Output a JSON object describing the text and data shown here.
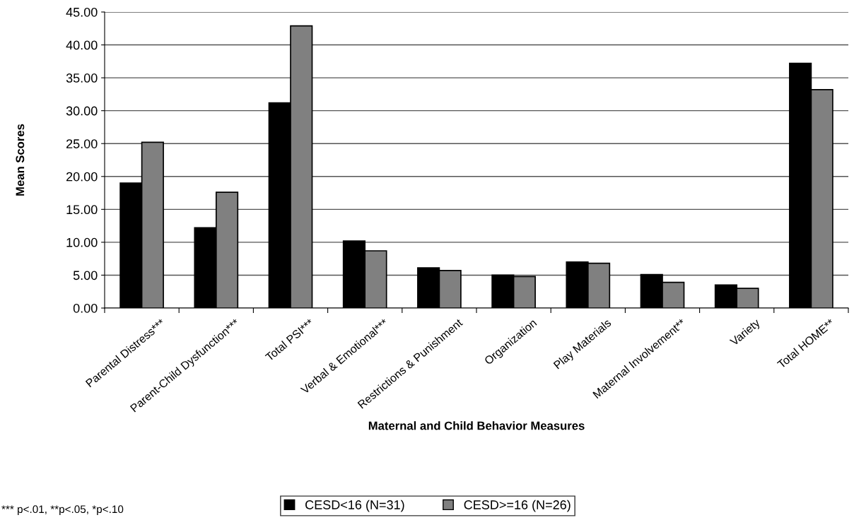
{
  "chart_data": {
    "type": "bar",
    "xlabel": "Maternal and Child Behavior Measures",
    "ylabel": "Mean Scores",
    "categories": [
      "Parental Distress***",
      "Parent-Child Dysfunction***",
      "Total PSI***",
      "Verbal & Emotional***",
      "Restrictions & Punishment",
      "Organization",
      "Play Materials",
      "Maternal Involvement**",
      "Variety",
      "Total HOME**"
    ],
    "series": [
      {
        "name": "CESD<16 (N=31)",
        "color": "#000000",
        "values": [
          19.0,
          12.2,
          31.2,
          10.2,
          6.1,
          5.0,
          7.0,
          5.1,
          3.5,
          37.2
        ]
      },
      {
        "name": "CESD>=16 (N=26)",
        "color": "#808080",
        "values": [
          25.2,
          17.6,
          42.9,
          8.7,
          5.7,
          4.8,
          6.8,
          3.9,
          3.0,
          33.2
        ]
      }
    ],
    "ylim": [
      0,
      45
    ],
    "yticks": [
      {
        "value": 0,
        "label": "0.00"
      },
      {
        "value": 5,
        "label": "5.00"
      },
      {
        "value": 10,
        "label": "10.00"
      },
      {
        "value": 15,
        "label": "15.00"
      },
      {
        "value": 20,
        "label": "20.00"
      },
      {
        "value": 25,
        "label": "25.00"
      },
      {
        "value": 30,
        "label": "30.00"
      },
      {
        "value": 35,
        "label": "35.00"
      },
      {
        "value": 40,
        "label": "40.00"
      },
      {
        "value": 45,
        "label": "45.00"
      }
    ],
    "grid": "y",
    "legend": "bottom",
    "annotations": [
      "*** p<.01, **p<.05, *p<.10"
    ]
  }
}
